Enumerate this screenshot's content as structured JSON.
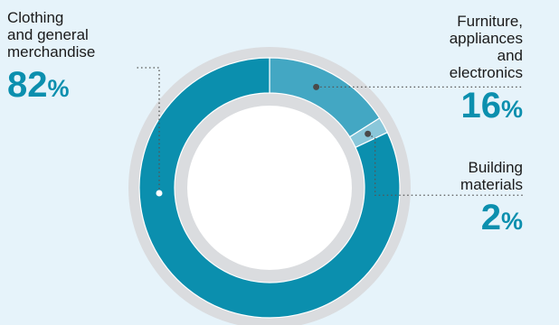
{
  "colors": {
    "background": "#e6f3fa",
    "ring_outer": "#dadcdf",
    "ring_inner": "#dadcdf",
    "center": "#ffffff",
    "leader": "#555555",
    "percent_text": "#0b8fae"
  },
  "chart_data": {
    "type": "pie",
    "style": "donut",
    "start_angle_deg": 0,
    "direction": "clockwise",
    "slices": [
      {
        "label": "Furniture, appliances and electronics",
        "label_lines": [
          "Furniture,",
          "appliances",
          "and",
          "electronics"
        ],
        "value": 16,
        "display": "16",
        "unit": "%",
        "color": "#43a7c3"
      },
      {
        "label": "Building materials",
        "label_lines": [
          "Building",
          "materials"
        ],
        "value": 2,
        "display": "2",
        "unit": "%",
        "color": "#8ac7da"
      },
      {
        "label": "Clothing and general merchandise",
        "label_lines": [
          "Clothing",
          "and general",
          "merchandise"
        ],
        "value": 82,
        "display": "82",
        "unit": "%",
        "color": "#0b8fae"
      }
    ]
  }
}
